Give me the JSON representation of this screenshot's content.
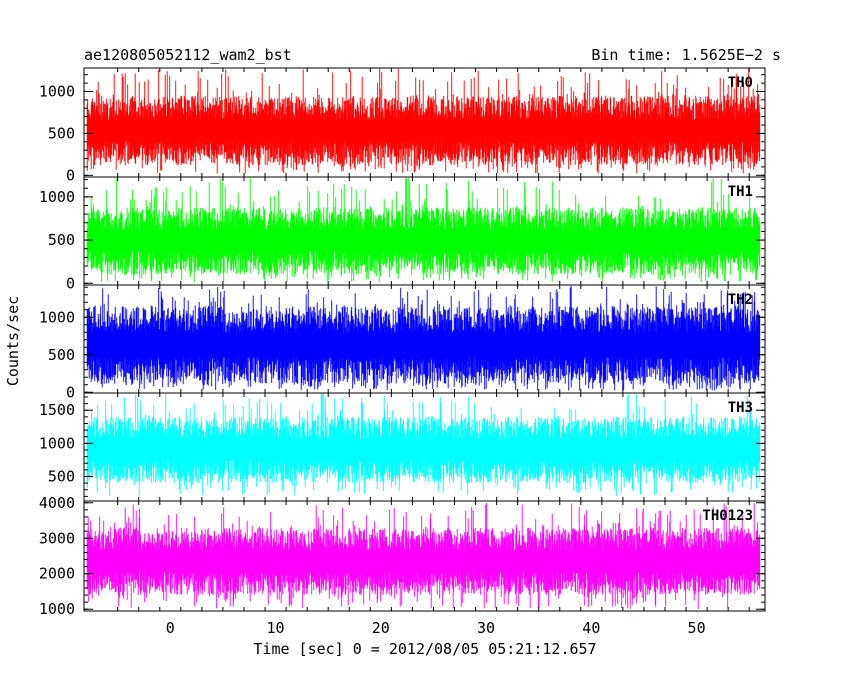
{
  "header": {
    "title": "ae120805052112_wam2_bst",
    "bin_time": "Bin time: 1.5625E−2 s"
  },
  "chart_data": {
    "type": "line",
    "title": "ae120805052112_wam2_bst",
    "subtitle": "Bin time: 1.5625E−2 s",
    "xlabel": "Time [sec] 0 = 2012/08/05 05:21:12.657",
    "ylabel": "Counts/sec",
    "xlim": [
      -8.2,
      56.5
    ],
    "x_data_range": [
      -7.9,
      56.0
    ],
    "bin_time": 0.015625,
    "x_ticks": [
      0,
      10,
      20,
      30,
      40,
      50
    ],
    "grid": false,
    "legend": "none",
    "panels": [
      {
        "name": "TH0",
        "color": "#ff0000",
        "ylim": [
          -20,
          1280
        ],
        "y_ticks": [
          0,
          500,
          1000
        ],
        "typical_low": 120,
        "typical_high": 950,
        "min": 20,
        "max": 1280
      },
      {
        "name": "TH1",
        "color": "#00ff00",
        "ylim": [
          -20,
          1230
        ],
        "y_ticks": [
          0,
          500,
          1000
        ],
        "typical_low": 100,
        "typical_high": 880,
        "min": 10,
        "max": 1220
      },
      {
        "name": "TH2",
        "color": "#0000ff",
        "ylim": [
          -10,
          1430
        ],
        "y_ticks": [
          0,
          500,
          1000
        ],
        "typical_low": 110,
        "typical_high": 1150,
        "min": 20,
        "max": 1420
      },
      {
        "name": "TH3",
        "color": "#00ffff",
        "ylim": [
          130,
          1760
        ],
        "y_ticks": [
          500,
          1000,
          1500
        ],
        "typical_low": 400,
        "typical_high": 1400,
        "min": 200,
        "max": 1750
      },
      {
        "name": "TH0123",
        "color": "#ff00ff",
        "ylim": [
          950,
          4050
        ],
        "y_ticks": [
          1000,
          2000,
          3000,
          4000
        ],
        "typical_low": 1400,
        "typical_high": 3300,
        "min": 1000,
        "max": 4000
      }
    ]
  }
}
